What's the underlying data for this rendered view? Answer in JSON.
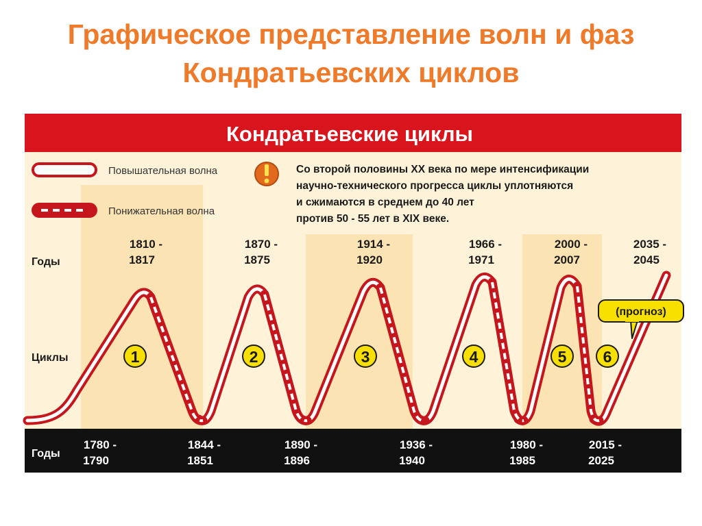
{
  "slide_title": {
    "line1": "Графическое представление волн и фаз",
    "line2": "Кондратьевских циклов"
  },
  "header": {
    "title": "Кондратьевские циклы"
  },
  "legend": {
    "rising_label": "Повышательная волна",
    "falling_label": "Понижательная волна"
  },
  "note": {
    "icon": "exclamation-icon",
    "lines": [
      "Со второй половины XX века  по мере интенсификации",
      "научно-технического прогресса  циклы  уплотняются",
      "и сжимаются в среднем до 40 лет",
      "против 50 - 55 лет в XIX веке."
    ]
  },
  "row_labels": {
    "years_top": "Годы",
    "cycles": "Циклы",
    "years_bottom": "Годы"
  },
  "peaks": [
    {
      "line1": "1810 -",
      "line2": "1817"
    },
    {
      "line1": "1870 -",
      "line2": "1875"
    },
    {
      "line1": "1914 -",
      "line2": "1920"
    },
    {
      "line1": "1966 -",
      "line2": "1971"
    },
    {
      "line1": "2000 -",
      "line2": "2007"
    },
    {
      "line1": "2035 -",
      "line2": "2045"
    }
  ],
  "troughs": [
    {
      "line1": "1780 -",
      "line2": "1790"
    },
    {
      "line1": "1844 -",
      "line2": "1851"
    },
    {
      "line1": "1890 -",
      "line2": "1896"
    },
    {
      "line1": "1936 -",
      "line2": "1940"
    },
    {
      "line1": "1980 -",
      "line2": "1985"
    },
    {
      "line1": "2015 -",
      "line2": "2025"
    }
  ],
  "cycles": [
    "1",
    "2",
    "3",
    "4",
    "5",
    "6"
  ],
  "forecast_label": "(прогноз)",
  "colors": {
    "title": "#ef7a2a",
    "header_red": "#d8141c",
    "panel_bg": "#fef3d9",
    "band_bg": "#fbe3b4",
    "wave": "#c4161c",
    "badge": "#f7df00",
    "footer": "#111111"
  }
}
